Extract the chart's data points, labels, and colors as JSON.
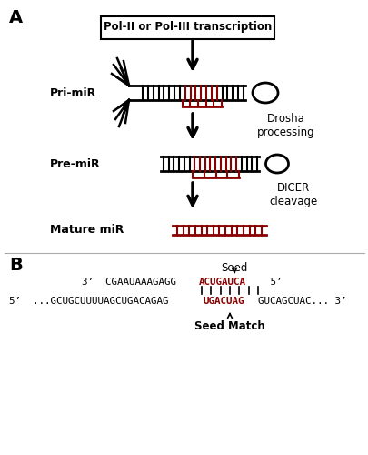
{
  "title_A": "A",
  "title_B": "B",
  "box_text": "Pol-II or Pol-III transcription",
  "label_pri": "Pri-miR",
  "label_pre": "Pre-miR",
  "label_mature": "Mature miR",
  "label_drosha": "Drosha\nprocessing",
  "label_dicer": "DICER\ncleavage",
  "label_seed": "Seed",
  "label_seed_match": "Seed Match",
  "black": "#000000",
  "dark_red": "#8B0000",
  "bg": "#ffffff"
}
